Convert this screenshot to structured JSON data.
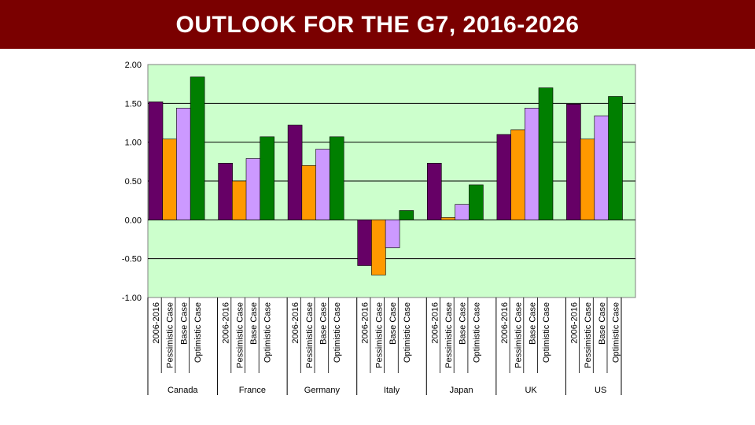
{
  "title": "OUTLOOK FOR THE G7, 2016-2026",
  "colors": {
    "title_bg": "#7a0000",
    "plot_bg": "#ccffcc",
    "series": [
      "#660066",
      "#ff9900",
      "#cc99ff",
      "#007f00"
    ]
  },
  "chart_data": {
    "type": "bar",
    "title": "OUTLOOK FOR THE G7, 2016-2026",
    "xlabel": "",
    "ylabel": "",
    "ylim": [
      -1.0,
      2.0
    ],
    "yticks": [
      "2.00",
      "1.50",
      "1.00",
      "0.50",
      "0.00",
      "-0.50",
      "-1.00"
    ],
    "ytick_values": [
      2.0,
      1.5,
      1.0,
      0.5,
      0.0,
      -0.5,
      -1.0
    ],
    "grid": true,
    "categories": [
      "Canada",
      "France",
      "Germany",
      "Italy",
      "Japan",
      "UK",
      "US"
    ],
    "series": [
      {
        "name": "2006-2016",
        "values": [
          1.52,
          0.73,
          1.22,
          -0.59,
          0.73,
          1.1,
          1.49
        ]
      },
      {
        "name": "Pessimistic Case",
        "values": [
          1.04,
          0.5,
          0.7,
          -0.71,
          0.03,
          1.16,
          1.04
        ]
      },
      {
        "name": "Base Case",
        "values": [
          1.44,
          0.79,
          0.91,
          -0.36,
          0.2,
          1.44,
          1.34
        ]
      },
      {
        "name": "Optimistic Case",
        "values": [
          1.84,
          1.07,
          1.07,
          0.12,
          0.45,
          1.7,
          1.59
        ]
      }
    ]
  }
}
